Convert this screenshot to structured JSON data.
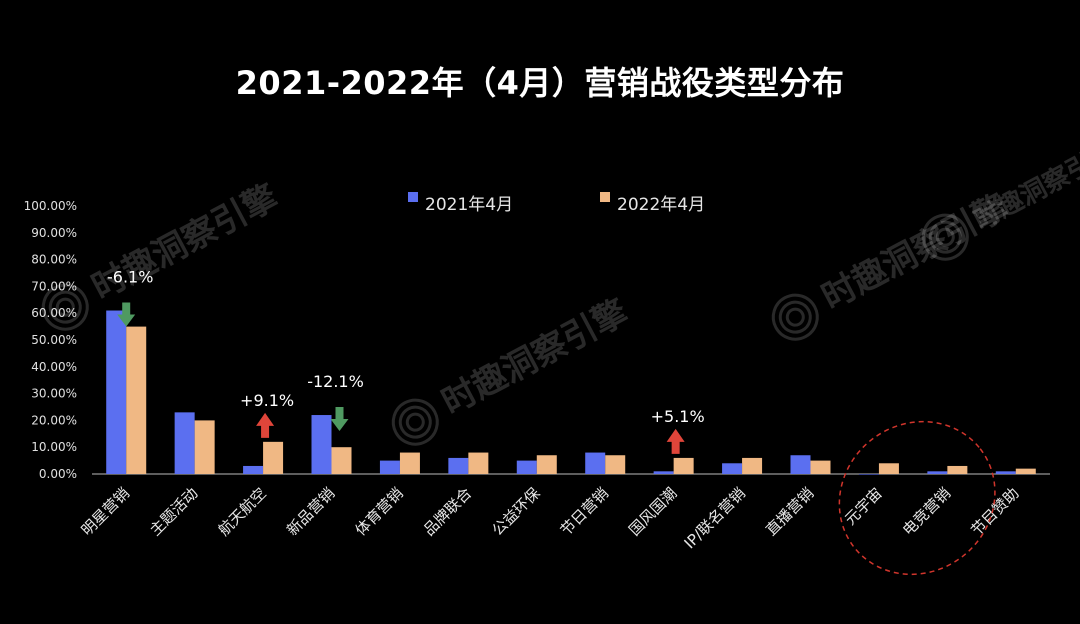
{
  "title": "2021-2022年（4月）营销战役类型分布",
  "watermark": "时趣洞察引擎",
  "colors": {
    "series_2021": "#5b6ff0",
    "series_2022": "#f0b884",
    "up_arrow": "#e0453a",
    "down_arrow": "#4f9a61",
    "highlight": "#d0352c"
  },
  "chart_data": {
    "type": "bar",
    "title": "2021-2022年（4月）营销战役类型分布",
    "categories": [
      "明星营销",
      "主题活动",
      "航天航空",
      "新品营销",
      "体育营销",
      "品牌联合",
      "公益环保",
      "节日营销",
      "国风国潮",
      "IP/联名营销",
      "直播营销",
      "元宇宙",
      "电竞营销",
      "节目赞助"
    ],
    "series": [
      {
        "name": "2021年4月",
        "values": [
          61,
          23,
          3,
          22,
          5,
          6,
          5,
          8,
          1,
          4,
          7,
          0,
          1,
          1
        ]
      },
      {
        "name": "2022年4月",
        "values": [
          55,
          20,
          12,
          10,
          8,
          8,
          7,
          7,
          6,
          6,
          5,
          4,
          3,
          2
        ]
      }
    ],
    "ylim": [
      0,
      100
    ],
    "yticks": [
      "0.00%",
      "10.00%",
      "20.00%",
      "30.00%",
      "40.00%",
      "50.00%",
      "60.00%",
      "70.00%",
      "80.00%",
      "90.00%",
      "100.00%"
    ],
    "legend_position": "top-center",
    "grid": false,
    "annotations": [
      {
        "category": "明星营销",
        "text": "-6.1%",
        "direction": "down"
      },
      {
        "category": "航天航空",
        "text": "+9.1%",
        "direction": "up"
      },
      {
        "category": "新品营销",
        "text": "-12.1%",
        "direction": "down"
      },
      {
        "category": "国风国潮",
        "text": "+5.1%",
        "direction": "up"
      }
    ],
    "highlighted_categories": [
      "元宇宙",
      "电竞营销"
    ]
  }
}
